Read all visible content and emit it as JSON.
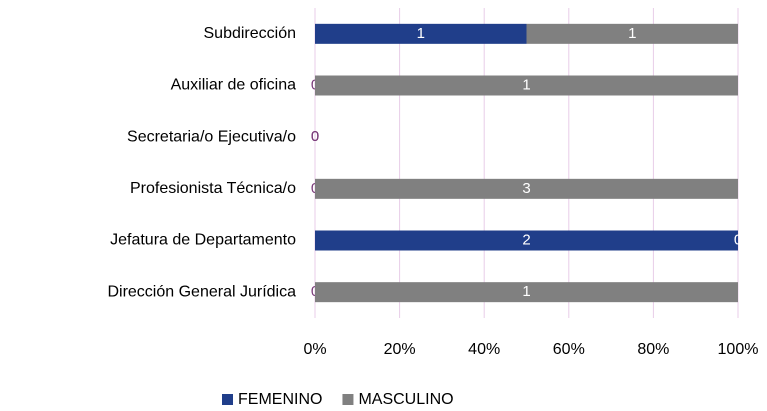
{
  "chart_data": {
    "type": "bar",
    "orientation": "horizontal",
    "stacked": "percent",
    "categories": [
      "Subdirección",
      "Auxiliar de oficina",
      "Secretaria/o Ejecutiva/o",
      "Profesionista Técnica/o",
      "Jefatura de Departamento",
      "Dirección General Jurídica"
    ],
    "series": [
      {
        "name": "FEMENINO",
        "color": "#203e8a",
        "values": [
          1,
          0,
          0,
          0,
          2,
          0
        ]
      },
      {
        "name": "MASCULINO",
        "color": "#808080",
        "values": [
          1,
          1,
          0,
          3,
          0,
          1
        ]
      }
    ],
    "xlim": [
      0,
      100
    ],
    "xticks": [
      {
        "value": 0,
        "label": "0%"
      },
      {
        "value": 20,
        "label": "20%"
      },
      {
        "value": 40,
        "label": "40%"
      },
      {
        "value": 60,
        "label": "60%"
      },
      {
        "value": 80,
        "label": "80%"
      },
      {
        "value": 100,
        "label": "100%"
      }
    ],
    "grid": true,
    "legend": "bottom"
  }
}
